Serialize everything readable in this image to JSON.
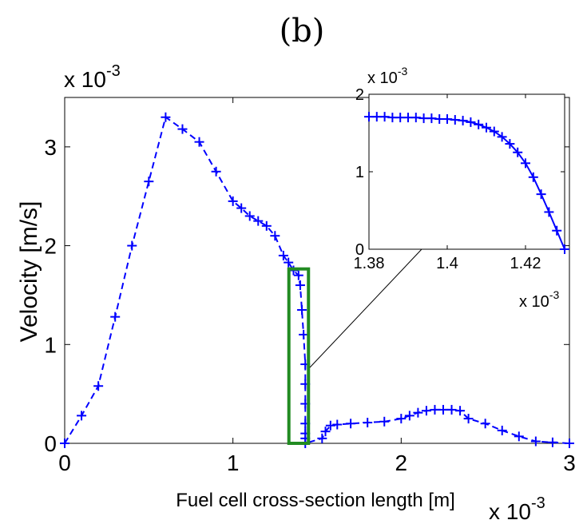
{
  "chart_data": [
    {
      "type": "line",
      "title": "(b)",
      "xlabel": "Fuel cell cross-section length [m]",
      "ylabel": "Velocity [m/s]",
      "x_multiplier": "x 10",
      "x_exponent": "-3",
      "y_multiplier": "x 10",
      "y_exponent": "-3",
      "xlim": [
        0,
        0.003
      ],
      "ylim": [
        0,
        0.0035
      ],
      "x_ticks": [
        0,
        0.001,
        0.002,
        0.003
      ],
      "x_tick_labels": [
        "0",
        "1",
        "2",
        "3"
      ],
      "y_ticks": [
        0,
        0.001,
        0.002,
        0.003
      ],
      "y_tick_labels": [
        "0",
        "1",
        "2",
        "3"
      ],
      "grid": false,
      "line_style": "dashed",
      "marker": "+",
      "color": "#0000ff",
      "series": [
        {
          "x": [
            0,
            0.0001,
            0.0002,
            0.0003,
            0.0004,
            0.0005,
            0.0006,
            0.0007,
            0.0008,
            0.0009,
            0.001,
            0.00105,
            0.0011,
            0.00115,
            0.0012,
            0.00125,
            0.0013,
            0.00133,
            0.00136,
            0.00139,
            0.0014,
            0.00141,
            0.00142,
            0.00143,
            0.00143,
            0.00143,
            0.00143,
            0.00143,
            0.00143,
            0.00143,
            0.00153,
            0.00155,
            0.00158,
            0.00162,
            0.0017,
            0.0018,
            0.0019,
            0.002,
            0.00205,
            0.0021,
            0.00215,
            0.0022,
            0.00225,
            0.0023,
            0.00235,
            0.0024,
            0.0025,
            0.0026,
            0.0027,
            0.0028,
            0.0029,
            0.003
          ],
          "y": [
            0,
            0.00028,
            0.00058,
            0.00128,
            0.002,
            0.00265,
            0.0033,
            0.00318,
            0.00305,
            0.00275,
            0.00245,
            0.00238,
            0.0023,
            0.00225,
            0.0022,
            0.0021,
            0.0019,
            0.00183,
            0.00175,
            0.0017,
            0.0016,
            0.00135,
            0.0011,
            0.0008,
            0.0006,
            0.0004,
            0.0002,
            0.0001,
            5e-05,
            0,
            5e-05,
            0.00012,
            0.00018,
            0.00019,
            0.0002,
            0.00021,
            0.00022,
            0.00025,
            0.00028,
            0.00031,
            0.00033,
            0.00034,
            0.00034,
            0.00034,
            0.00033,
            0.00025,
            0.0002,
            0.00013,
            7e-05,
            2e-05,
            1e-05,
            0
          ]
        }
      ],
      "zoom_box": {
        "x0": 0.00138,
        "x1": 0.00143,
        "y0": 0,
        "y1": 0.0017,
        "color": "#228b22"
      }
    },
    {
      "type": "line",
      "inset": true,
      "x_multiplier": "x 10",
      "x_exponent": "-3",
      "y_multiplier": "x 10",
      "y_exponent": "-3",
      "xlim": [
        0.00138,
        0.00143
      ],
      "ylim": [
        0,
        0.002
      ],
      "x_ticks": [
        0.00138,
        0.0014,
        0.00142
      ],
      "x_tick_labels": [
        "1.38",
        "1.4",
        "1.42"
      ],
      "y_ticks": [
        0,
        0.001,
        0.002
      ],
      "y_tick_labels": [
        "0",
        "1",
        "2"
      ],
      "marker": "+",
      "color": "#0000ff",
      "series": [
        {
          "x": [
            0.00138,
            0.001382,
            0.001384,
            0.001386,
            0.001388,
            0.00139,
            0.001392,
            0.001394,
            0.001396,
            0.001398,
            0.0014,
            0.001402,
            0.001404,
            0.001406,
            0.001408,
            0.00141,
            0.001412,
            0.001414,
            0.001416,
            0.001418,
            0.00142,
            0.001422,
            0.001424,
            0.001426,
            0.001428,
            0.00143
          ],
          "y": [
            0.00171,
            0.00171,
            0.00171,
            0.0017,
            0.0017,
            0.0017,
            0.0017,
            0.00169,
            0.00169,
            0.00168,
            0.00168,
            0.00167,
            0.00166,
            0.00164,
            0.00161,
            0.00157,
            0.00152,
            0.00145,
            0.00136,
            0.00125,
            0.00111,
            0.00093,
            0.00071,
            0.00048,
            0.00024,
            0
          ]
        }
      ]
    }
  ]
}
